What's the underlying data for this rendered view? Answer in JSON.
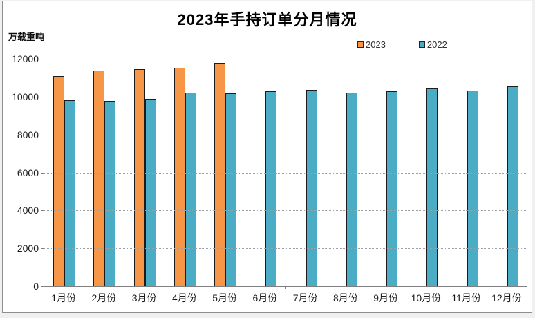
{
  "window": {
    "background_color": "#f0f0f0",
    "panel_background": "#ffffff",
    "panel_border_color": "#8e8e8e"
  },
  "chart_data": {
    "type": "bar",
    "title": "2023年手持订单分月情况",
    "unit_label": "万载重吨",
    "categories": [
      "1月份",
      "2月份",
      "3月份",
      "4月份",
      "5月份",
      "6月份",
      "7月份",
      "8月份",
      "9月份",
      "10月份",
      "11月份",
      "12月份"
    ],
    "series": [
      {
        "name": "2023",
        "color": "#F79646",
        "values": [
          11100,
          11370,
          11450,
          11520,
          11780,
          null,
          null,
          null,
          null,
          null,
          null,
          null
        ]
      },
      {
        "name": "2022",
        "color": "#4BACC6",
        "values": [
          9820,
          9760,
          9890,
          10220,
          10190,
          10280,
          10370,
          10210,
          10270,
          10430,
          10340,
          10550
        ]
      }
    ],
    "xlabel": "",
    "ylabel": "",
    "ylim": [
      0,
      12000
    ],
    "yticks": [
      0,
      2000,
      4000,
      6000,
      8000,
      10000,
      12000
    ],
    "grid": "horizontal-dotted",
    "gridline_color": "#a0a0a0",
    "axis_color": "#7f7f7f",
    "bar_border_color": "#1c1c1c",
    "legend_position": "top-right"
  }
}
